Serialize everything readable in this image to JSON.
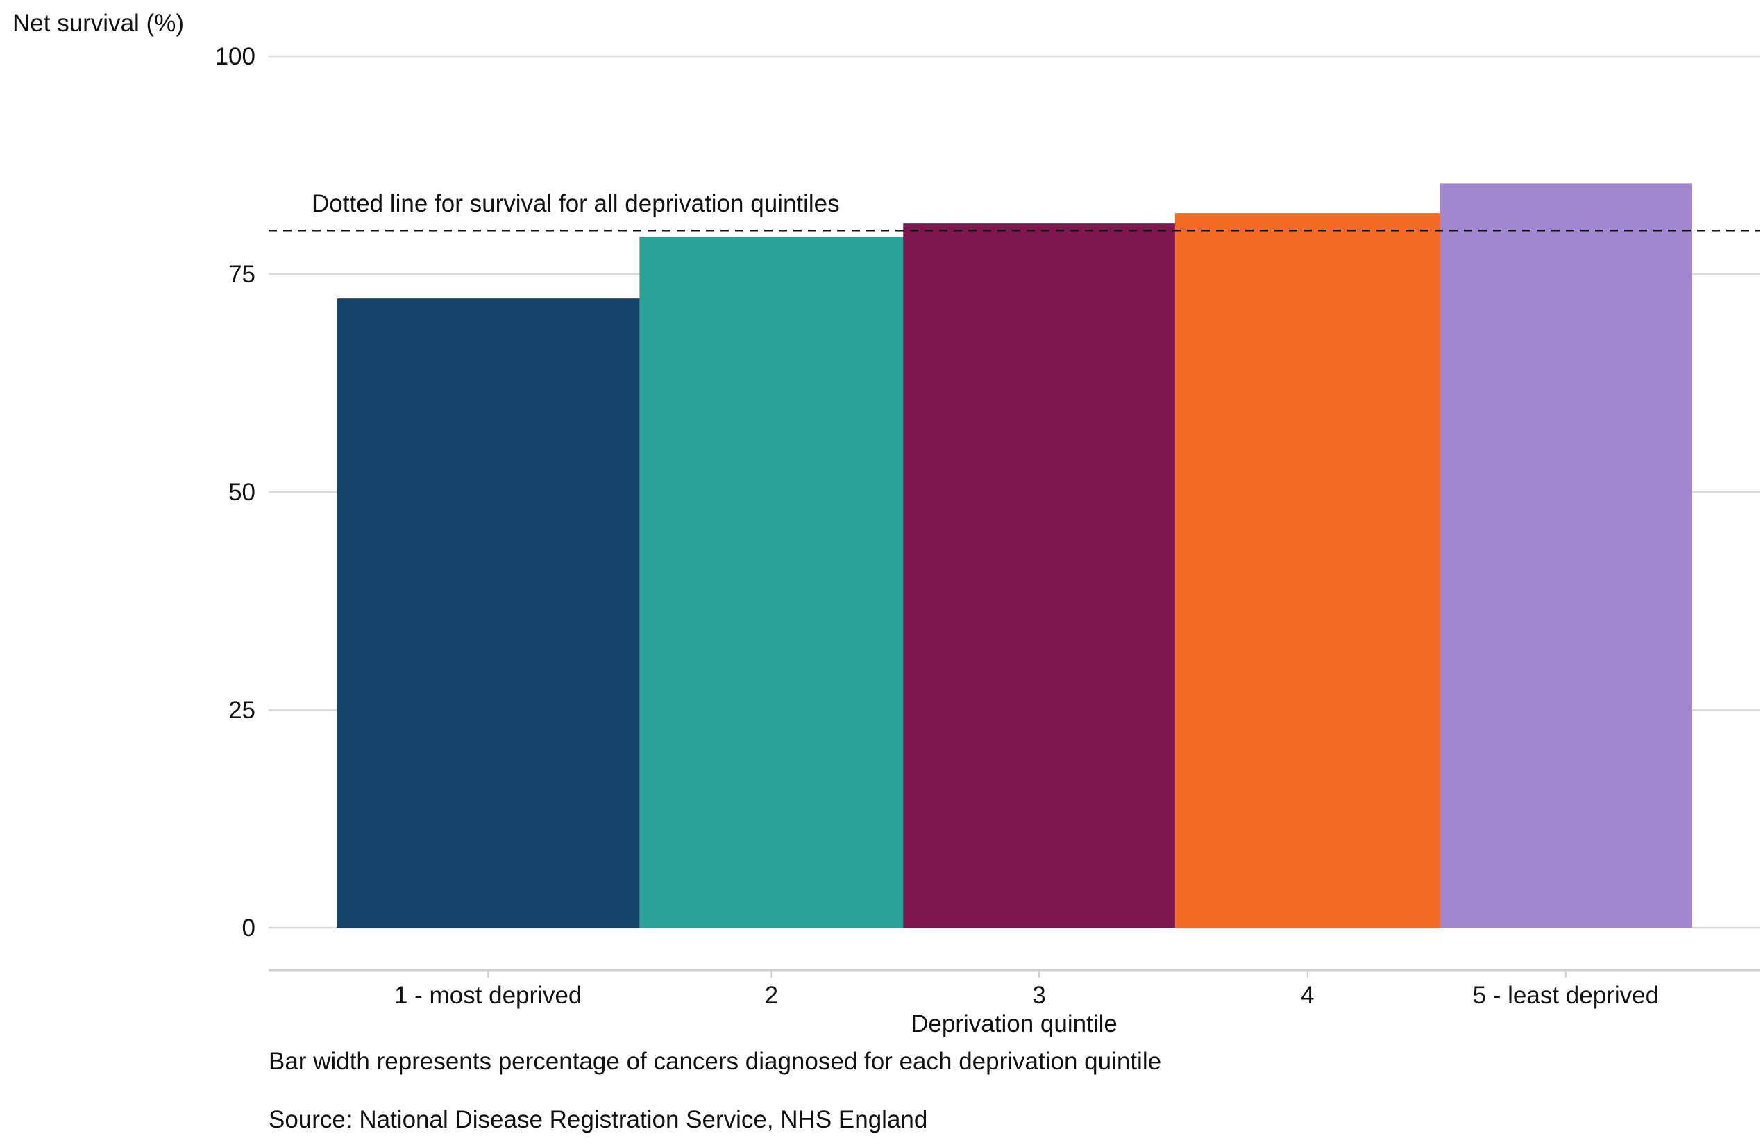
{
  "chart_data": {
    "type": "bar",
    "variable_width": true,
    "ylabel": "Net survival (%)",
    "xlabel": "Deprivation quintile",
    "ylim": [
      0,
      100
    ],
    "yticks": [
      0,
      25,
      50,
      75,
      100
    ],
    "grid": "horizontal",
    "legend": "none",
    "categories": [
      "1 - most deprived",
      "2",
      "3",
      "4",
      "5 - least deprived"
    ],
    "values": [
      72.2,
      79.3,
      80.8,
      82.0,
      85.4
    ],
    "widths_percent": [
      22.4,
      19.5,
      20.1,
      19.6,
      18.6
    ],
    "colors": [
      "#14446C",
      "#29A398",
      "#7E174E",
      "#F46B25",
      "#A087D0"
    ],
    "reference_line": {
      "value": 80.0,
      "style": "dashed",
      "label": "Dotted line for survival for all deprivation quintiles"
    }
  },
  "notes": {
    "width_note": "Bar width represents percentage of cancers diagnosed for each deprivation quintile",
    "source": "Source: National Disease Registration Service, NHS England"
  }
}
